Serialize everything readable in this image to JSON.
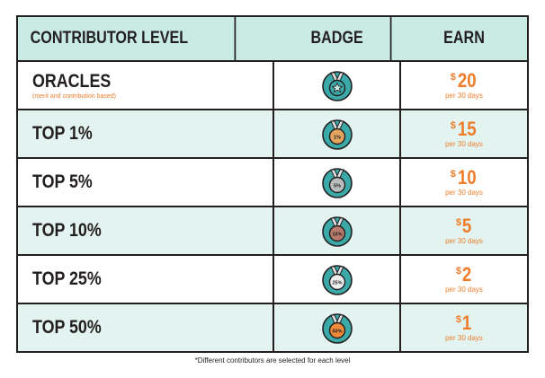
{
  "header": [
    "CONTRIBUTOR LEVEL",
    "BADGE",
    "EARN"
  ],
  "rows": [
    {
      "level": "ORACLES",
      "note": "(merit and contribution based)",
      "badge": null,
      "badge_color": "#3aa9a8",
      "currency": "$",
      "amount": "20",
      "period": "per 30 days"
    },
    {
      "level": "TOP 1%",
      "badge": "1%",
      "badge_color": "#e3a45e",
      "currency": "$",
      "amount": "15",
      "period": "per 30 days"
    },
    {
      "level": "TOP 5%",
      "badge": "5%",
      "badge_color": "#b9bcbd",
      "currency": "$",
      "amount": "10",
      "period": "per 30 days"
    },
    {
      "level": "TOP 10%",
      "badge": "10%",
      "badge_color": "#b77a6c",
      "currency": "$",
      "amount": "5",
      "period": "per 30 days"
    },
    {
      "level": "TOP 25%",
      "badge": "25%",
      "badge_color": "#eef0f0",
      "currency": "$",
      "amount": "2",
      "period": "per 30 days"
    },
    {
      "level": "TOP 50%",
      "badge": "50%",
      "badge_color": "#ee8a3a",
      "currency": "$",
      "amount": "1",
      "period": "per 30 days"
    }
  ],
  "footnote": "*Different contributors are selected for each level"
}
